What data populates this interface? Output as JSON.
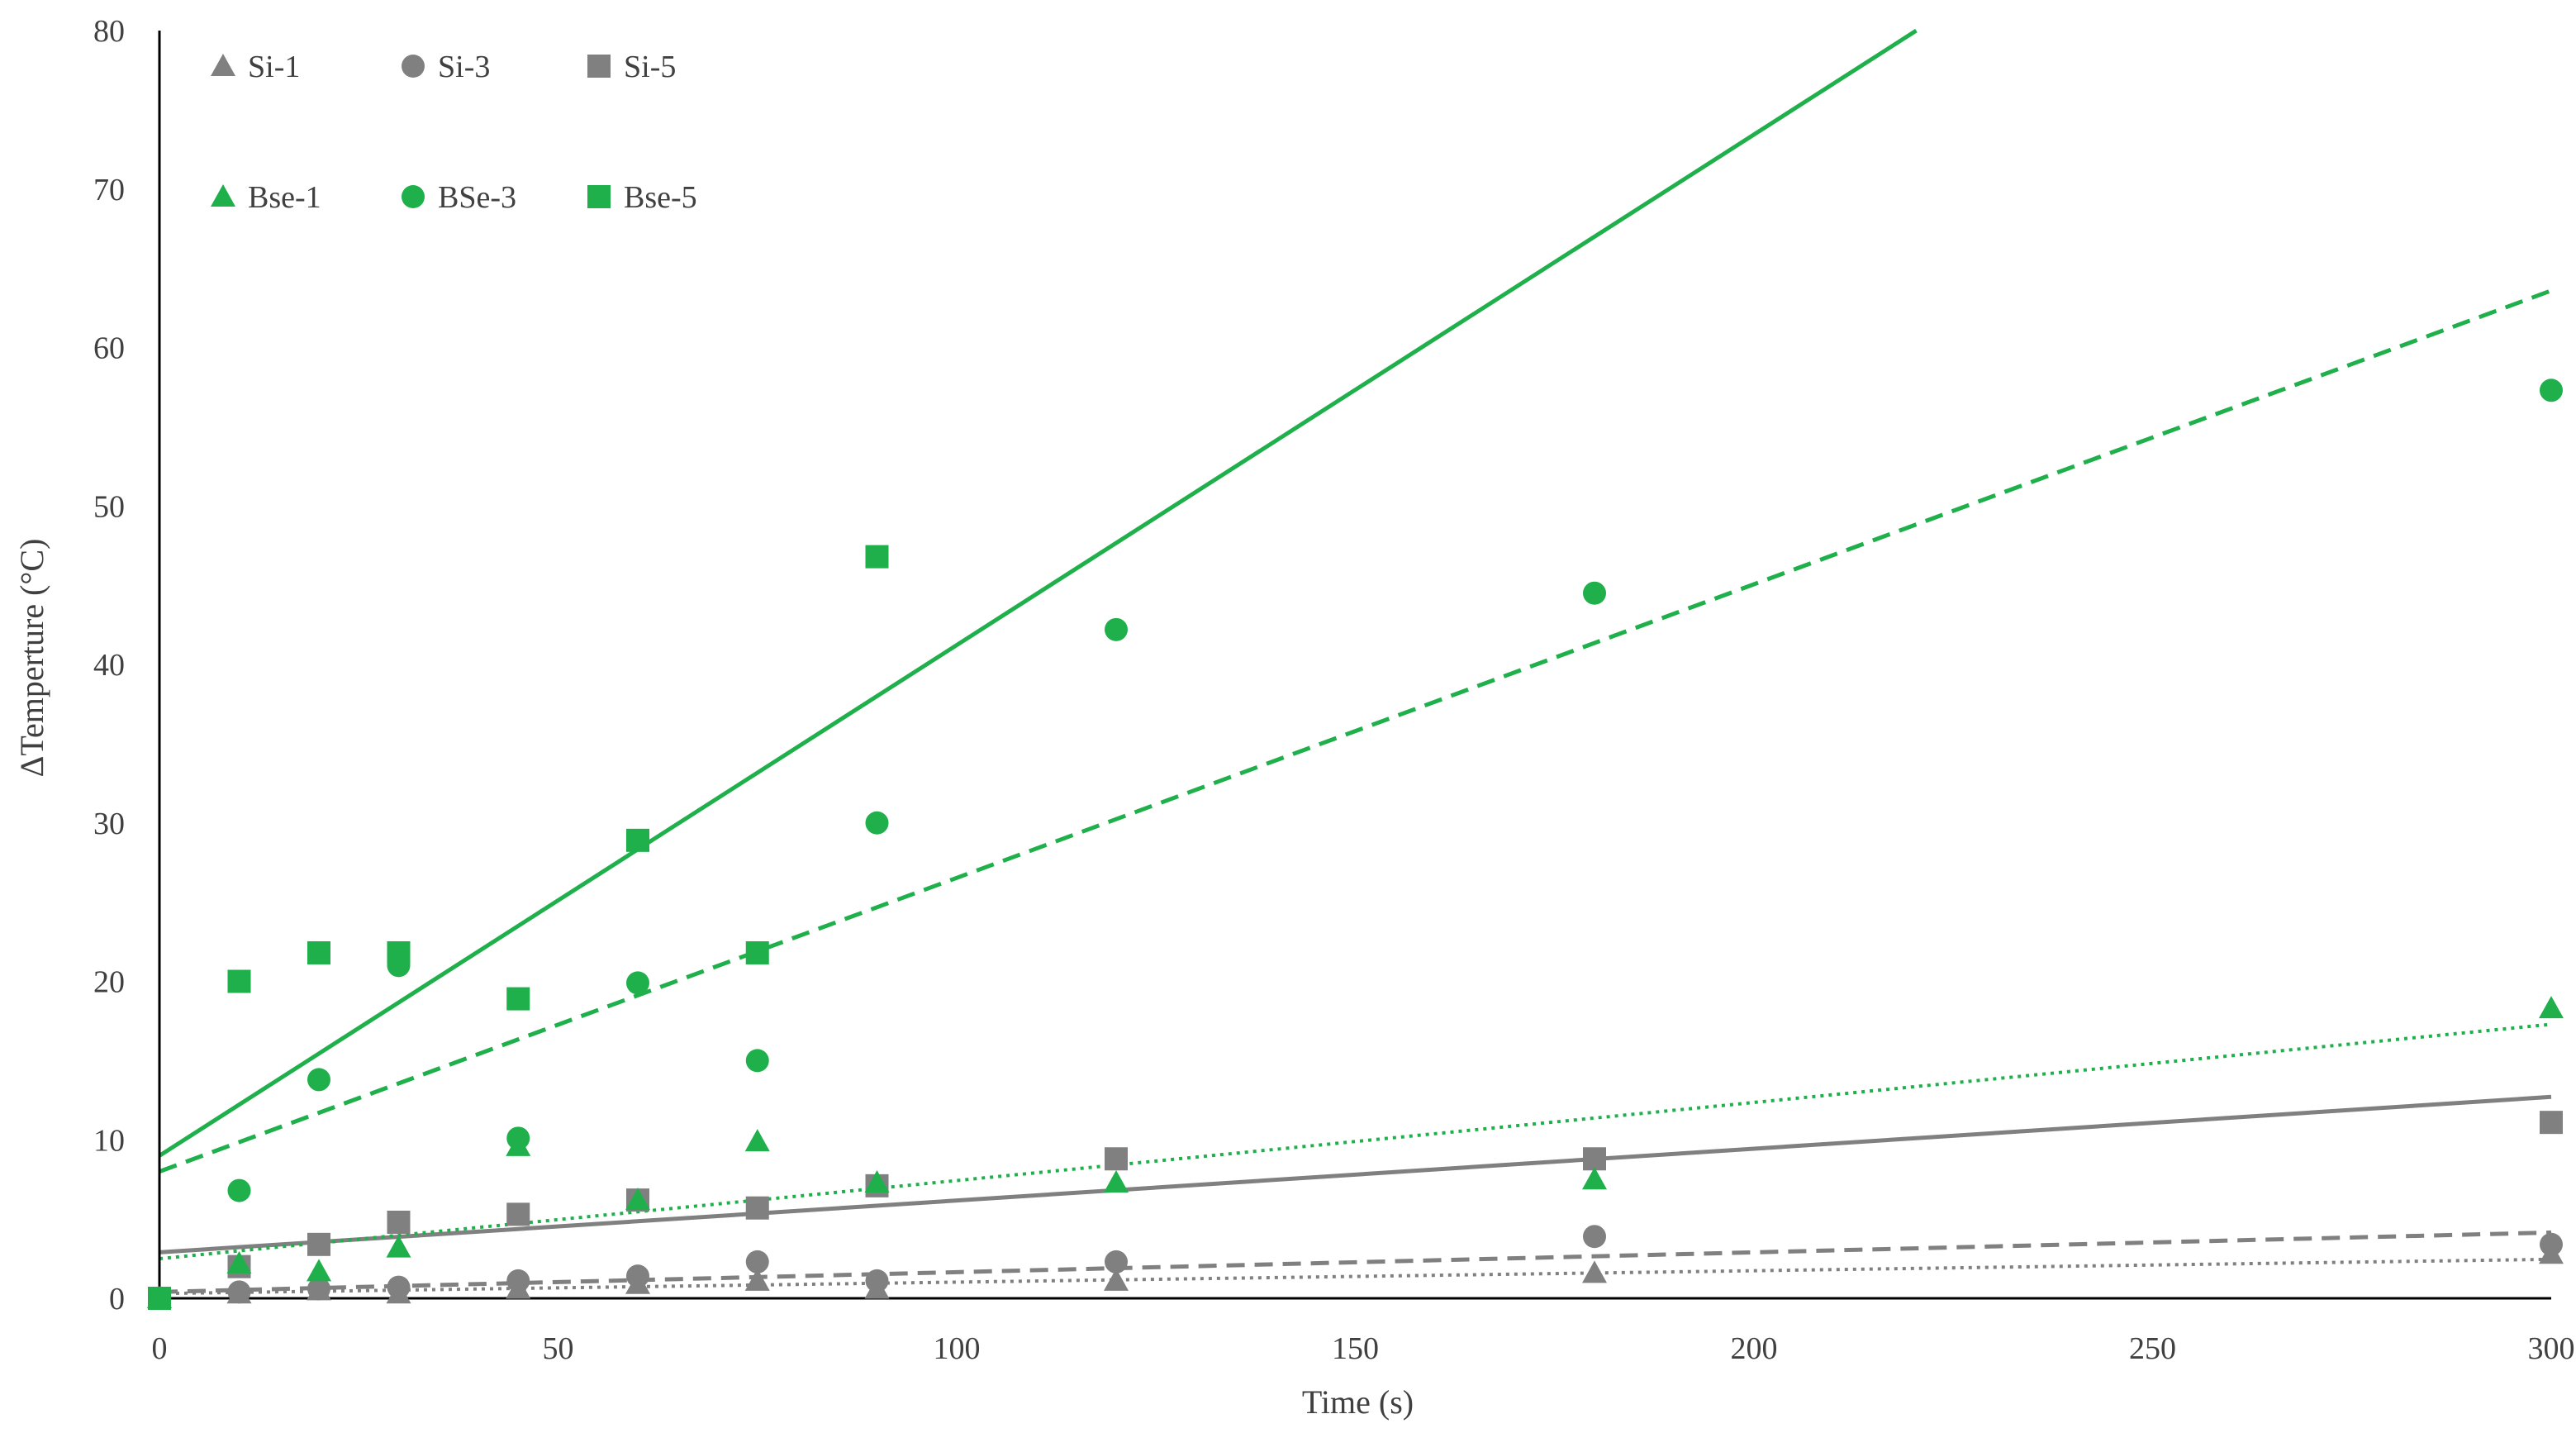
{
  "chart_data": {
    "type": "scatter",
    "title": "",
    "xlabel": "Time (s)",
    "ylabel": "ΔTemperture (°C)",
    "xlim": [
      0,
      300
    ],
    "ylim": [
      0,
      80
    ],
    "xticks": [
      0,
      50,
      100,
      150,
      200,
      250,
      300
    ],
    "yticks": [
      0,
      10,
      20,
      30,
      40,
      50,
      60,
      70,
      80
    ],
    "grid": false,
    "legend_position": "top-left",
    "colors": {
      "gray": "#808080",
      "green": "#1fb04c",
      "axis": "#000000"
    },
    "series": [
      {
        "name": "Si-1",
        "marker": "triangle",
        "color": "#808080",
        "x": [
          0,
          10,
          20,
          30,
          45,
          60,
          75,
          90,
          120,
          180,
          300
        ],
        "y": [
          0,
          0.3,
          0.5,
          0.3,
          0.6,
          0.9,
          1.1,
          0.6,
          1.1,
          1.6,
          2.8
        ],
        "trendline": {
          "style": "dotted",
          "slope": 0.0072,
          "intercept": 0.3
        }
      },
      {
        "name": "Si-3",
        "marker": "circle",
        "color": "#808080",
        "x": [
          0,
          10,
          20,
          30,
          45,
          60,
          75,
          90,
          120,
          180,
          300
        ],
        "y": [
          0,
          0.4,
          0.6,
          0.7,
          1.1,
          1.4,
          2.3,
          1.1,
          2.3,
          3.9,
          3.4
        ],
        "trendline": {
          "style": "dashed",
          "slope": 0.0125,
          "intercept": 0.4
        }
      },
      {
        "name": "Si-5",
        "marker": "square",
        "color": "#808080",
        "x": [
          0,
          10,
          20,
          30,
          45,
          60,
          75,
          90,
          120,
          180,
          300
        ],
        "y": [
          0,
          2.0,
          3.4,
          4.8,
          5.3,
          6.2,
          5.7,
          7.1,
          8.8,
          8.8,
          11.1
        ],
        "trendline": {
          "style": "solid",
          "slope": 0.0327,
          "intercept": 2.9
        }
      },
      {
        "name": "Bse-1",
        "marker": "triangle",
        "color": "#1fb04c",
        "x": [
          0,
          10,
          20,
          30,
          45,
          60,
          75,
          90,
          120,
          180,
          300
        ],
        "y": [
          0,
          2.2,
          1.7,
          3.2,
          9.6,
          6.2,
          9.9,
          7.3,
          7.3,
          7.5,
          18.3
        ],
        "trendline": {
          "style": "dotted",
          "slope": 0.0493,
          "intercept": 2.5
        }
      },
      {
        "name": "BSe-3",
        "marker": "circle",
        "color": "#1fb04c",
        "x": [
          0,
          10,
          20,
          30,
          45,
          60,
          75,
          90,
          120,
          180,
          300
        ],
        "y": [
          0,
          6.8,
          13.8,
          21.0,
          10.1,
          19.9,
          15.0,
          30.0,
          42.2,
          44.5,
          57.3
        ],
        "trendline": {
          "style": "dashed",
          "slope": 0.1853,
          "intercept": 8.0
        }
      },
      {
        "name": "Bse-5",
        "marker": "square",
        "color": "#1fb04c",
        "x": [
          0,
          10,
          20,
          30,
          45,
          60,
          75,
          90
        ],
        "y": [
          0,
          20.0,
          21.8,
          21.8,
          18.9,
          28.9,
          21.8,
          46.8
        ],
        "trendline": {
          "style": "solid",
          "slope": 0.3222,
          "intercept": 9.0
        }
      }
    ]
  }
}
